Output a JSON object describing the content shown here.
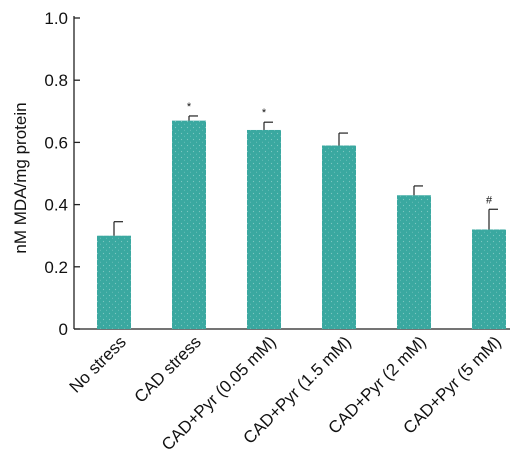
{
  "chart_data": {
    "type": "bar",
    "title": "",
    "xlabel": "",
    "ylabel": "nM MDA/mg protein",
    "ylim": [
      0,
      1.0
    ],
    "yticks": [
      "0",
      "0.2",
      "0.4",
      "0.6",
      "0.8",
      "1.0"
    ],
    "yticks_values": [
      0,
      0.2,
      0.4,
      0.6,
      0.8,
      1.0
    ],
    "categories": [
      "No stress",
      "CAD stress",
      "CAD+Pyr (0.05 mM)",
      "CAD+Pyr (1.5 mM)",
      "CAD+Pyr (2 mM)",
      "CAD+Pyr (5 mM)"
    ],
    "values": [
      0.3,
      0.67,
      0.64,
      0.59,
      0.43,
      0.32
    ],
    "errors": [
      0.045,
      0.015,
      0.025,
      0.04,
      0.03,
      0.065
    ],
    "annotations": [
      "",
      "*",
      "*",
      "",
      "",
      "#"
    ],
    "bar_color": "#3aa8a0",
    "axis_color": "#222222",
    "grid": false,
    "legend": "none"
  }
}
